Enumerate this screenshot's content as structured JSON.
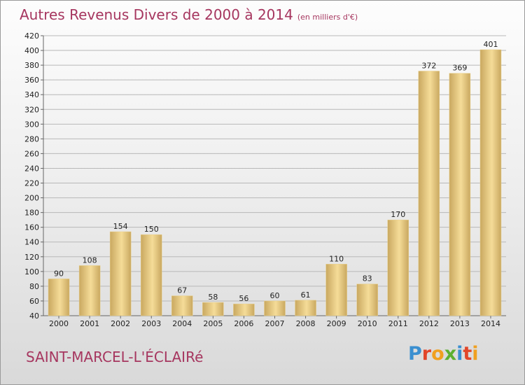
{
  "title": "Autres Revenus Divers de 2000 à 2014",
  "subtitle": "(en milliers d'€)",
  "commune": "SAINT-MARCEL-L'ÉCLAIRé",
  "logo": {
    "text": "Proxiti",
    "letters": [
      {
        "char": "P",
        "color": "#3a8fd0"
      },
      {
        "char": "r",
        "color": "#e2462a"
      },
      {
        "char": "o",
        "color": "#f0a020"
      },
      {
        "char": "x",
        "color": "#5cb030"
      },
      {
        "char": "i",
        "color": "#3a8fd0"
      },
      {
        "char": "t",
        "color": "#e2462a"
      },
      {
        "char": "i",
        "color": "#f0a020"
      }
    ]
  },
  "colors": {
    "title": "#a6365f",
    "bar_light": "#f5dc98",
    "bar_dark": "#c9a860",
    "grid": "#b8b8b8"
  },
  "chart_data": {
    "type": "bar",
    "categories": [
      "2000",
      "2001",
      "2002",
      "2003",
      "2004",
      "2005",
      "2006",
      "2007",
      "2008",
      "2009",
      "2010",
      "2011",
      "2012",
      "2013",
      "2014"
    ],
    "values": [
      90,
      108,
      154,
      150,
      67,
      58,
      56,
      60,
      61,
      110,
      83,
      170,
      372,
      369,
      401
    ],
    "ylim": [
      40,
      420
    ],
    "yticks": [
      40,
      60,
      80,
      100,
      120,
      140,
      160,
      180,
      200,
      220,
      240,
      260,
      280,
      300,
      320,
      340,
      360,
      380,
      400,
      420
    ],
    "grid": true,
    "data_labels": true
  }
}
